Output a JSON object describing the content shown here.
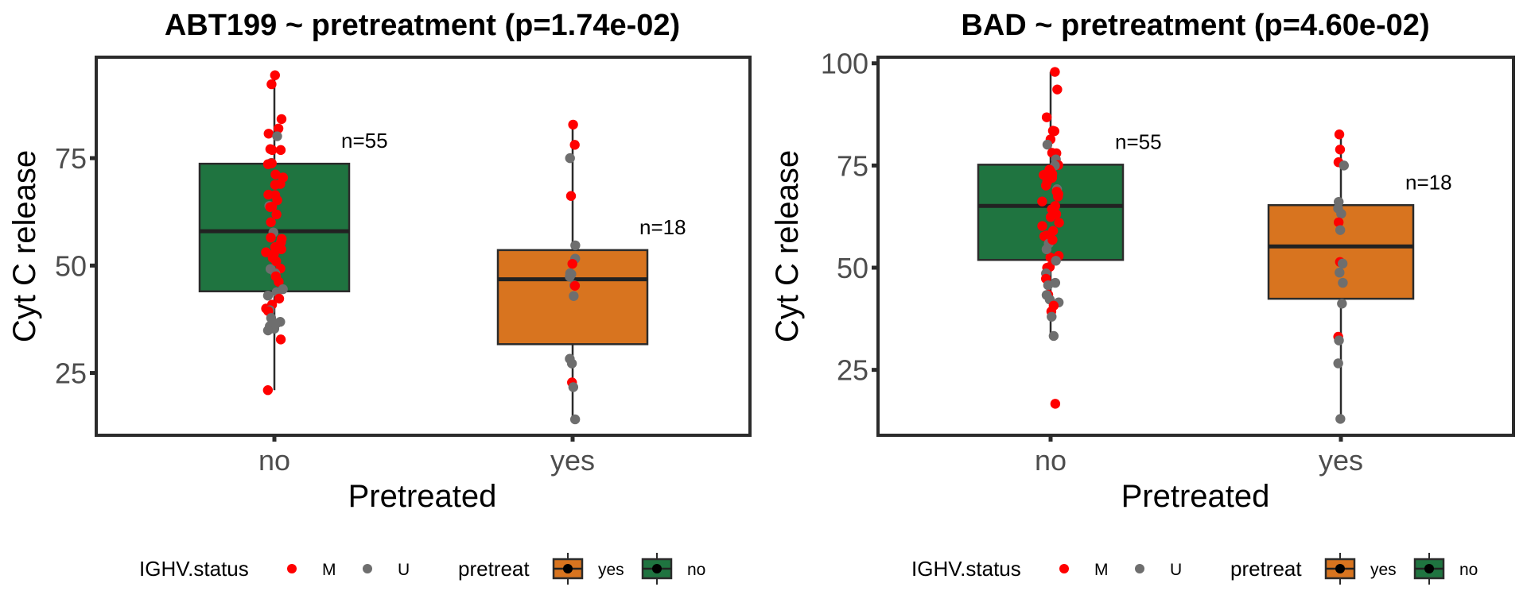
{
  "colors": {
    "no_fill": "#1f7440",
    "yes_fill": "#d8741f",
    "M": "#ff0000",
    "U": "#6e6e6e",
    "frame": "#2b2b2b",
    "median": "#222222"
  },
  "chart_data": [
    {
      "type": "box",
      "title": "ABT199 ~ pretreatment (p=1.74e-02)",
      "xlabel": "Pretreated",
      "ylabel": "Cyt C release",
      "categories": [
        "no",
        "yes"
      ],
      "ylim": [
        10.5,
        98.5
      ],
      "yticks": [
        25,
        50,
        75
      ],
      "grid": false,
      "legend_position": "bottom",
      "boxes": [
        {
          "category": "no",
          "n_label": "n=55",
          "q1": 44.0,
          "median": 58.0,
          "q3": 73.7,
          "whisker_low": 21.0,
          "whisker_high": 94.3
        },
        {
          "category": "yes",
          "n_label": "n=18",
          "q1": 31.7,
          "median": 46.8,
          "q3": 53.6,
          "whisker_low": 14.2,
          "whisker_high": 82.8
        }
      ],
      "points": {
        "no": [
          {
            "v": 94.3,
            "s": "M"
          },
          {
            "v": 92.2,
            "s": "M"
          },
          {
            "v": 84.1,
            "s": "M"
          },
          {
            "v": 81.9,
            "s": "M"
          },
          {
            "v": 80.7,
            "s": "M"
          },
          {
            "v": 80.1,
            "s": "U"
          },
          {
            "v": 77.1,
            "s": "M"
          },
          {
            "v": 76.9,
            "s": "M"
          },
          {
            "v": 76.9,
            "s": "M"
          },
          {
            "v": 73.9,
            "s": "U"
          },
          {
            "v": 73.6,
            "s": "M"
          },
          {
            "v": 73.8,
            "s": "M"
          },
          {
            "v": 69.0,
            "s": "M"
          },
          {
            "v": 68.8,
            "s": "M"
          },
          {
            "v": 66.5,
            "s": "M"
          },
          {
            "v": 66.4,
            "s": "M"
          },
          {
            "v": 63.9,
            "s": "U"
          },
          {
            "v": 63.7,
            "s": "M"
          },
          {
            "v": 63.6,
            "s": "M"
          },
          {
            "v": 61.9,
            "s": "M"
          },
          {
            "v": 57.7,
            "s": "U"
          },
          {
            "v": 56.5,
            "s": "M"
          },
          {
            "v": 56.2,
            "s": "M"
          },
          {
            "v": 55.4,
            "s": "M"
          },
          {
            "v": 54.3,
            "s": "M"
          },
          {
            "v": 53.8,
            "s": "M"
          },
          {
            "v": 52.7,
            "s": "M"
          },
          {
            "v": 51.8,
            "s": "M"
          },
          {
            "v": 49.3,
            "s": "M"
          },
          {
            "v": 49.2,
            "s": "U"
          },
          {
            "v": 48.2,
            "s": "U"
          },
          {
            "v": 46.2,
            "s": "M"
          },
          {
            "v": 44.5,
            "s": "U"
          },
          {
            "v": 43.8,
            "s": "U"
          },
          {
            "v": 43.0,
            "s": "U"
          },
          {
            "v": 42.3,
            "s": "M"
          },
          {
            "v": 40.9,
            "s": "M"
          },
          {
            "v": 40.0,
            "s": "M"
          },
          {
            "v": 39.6,
            "s": "U"
          },
          {
            "v": 39.4,
            "s": "M"
          },
          {
            "v": 36.9,
            "s": "U"
          },
          {
            "v": 36.5,
            "s": "U"
          },
          {
            "v": 35.9,
            "s": "U"
          },
          {
            "v": 35.3,
            "s": "U"
          },
          {
            "v": 34.9,
            "s": "U"
          },
          {
            "v": 32.8,
            "s": "M"
          },
          {
            "v": 21.0,
            "s": "M"
          },
          {
            "v": 60.1,
            "s": "M"
          },
          {
            "v": 65.2,
            "s": "M"
          },
          {
            "v": 70.5,
            "s": "M"
          },
          {
            "v": 71.2,
            "s": "M"
          },
          {
            "v": 53.1,
            "s": "M"
          },
          {
            "v": 51.0,
            "s": "M"
          },
          {
            "v": 47.5,
            "s": "M"
          },
          {
            "v": 37.8,
            "s": "U"
          }
        ],
        "yes": [
          {
            "v": 82.8,
            "s": "M"
          },
          {
            "v": 78.1,
            "s": "M"
          },
          {
            "v": 75.0,
            "s": "U"
          },
          {
            "v": 66.2,
            "s": "M"
          },
          {
            "v": 54.7,
            "s": "U"
          },
          {
            "v": 51.6,
            "s": "U"
          },
          {
            "v": 50.4,
            "s": "M"
          },
          {
            "v": 48.2,
            "s": "U"
          },
          {
            "v": 48.0,
            "s": "U"
          },
          {
            "v": 47.4,
            "s": "U"
          },
          {
            "v": 45.4,
            "s": "U"
          },
          {
            "v": 45.3,
            "s": "M"
          },
          {
            "v": 42.9,
            "s": "U"
          },
          {
            "v": 28.3,
            "s": "U"
          },
          {
            "v": 27.2,
            "s": "U"
          },
          {
            "v": 22.8,
            "s": "M"
          },
          {
            "v": 21.7,
            "s": "U"
          },
          {
            "v": 14.2,
            "s": "U"
          }
        ]
      }
    },
    {
      "type": "box",
      "title": "BAD ~ pretreatment (p=4.60e-02)",
      "xlabel": "Pretreated",
      "ylabel": "Cyt C release",
      "categories": [
        "no",
        "yes"
      ],
      "ylim": [
        9.0,
        101.5
      ],
      "yticks": [
        25,
        50,
        75,
        100
      ],
      "grid": false,
      "legend_position": "bottom",
      "boxes": [
        {
          "category": "no",
          "n_label": "n=55",
          "q1": 51.9,
          "median": 65.1,
          "q3": 75.2,
          "whisker_low": 33.3,
          "whisker_high": 97.9
        },
        {
          "category": "yes",
          "n_label": "n=18",
          "q1": 42.4,
          "median": 55.2,
          "q3": 65.3,
          "whisker_low": 13.0,
          "whisker_high": 82.6
        }
      ],
      "points": {
        "no": [
          {
            "v": 97.9,
            "s": "M"
          },
          {
            "v": 93.6,
            "s": "M"
          },
          {
            "v": 86.8,
            "s": "M"
          },
          {
            "v": 83.5,
            "s": "M"
          },
          {
            "v": 83.4,
            "s": "M"
          },
          {
            "v": 81.4,
            "s": "M"
          },
          {
            "v": 80.1,
            "s": "U"
          },
          {
            "v": 78.1,
            "s": "M"
          },
          {
            "v": 78.0,
            "s": "M"
          },
          {
            "v": 76.5,
            "s": "U"
          },
          {
            "v": 75.1,
            "s": "M"
          },
          {
            "v": 75.0,
            "s": "U"
          },
          {
            "v": 72.8,
            "s": "M"
          },
          {
            "v": 72.7,
            "s": "M"
          },
          {
            "v": 72.9,
            "s": "M"
          },
          {
            "v": 72.0,
            "s": "M"
          },
          {
            "v": 71.0,
            "s": "M"
          },
          {
            "v": 69.2,
            "s": "U"
          },
          {
            "v": 68.6,
            "s": "M"
          },
          {
            "v": 68.0,
            "s": "M"
          },
          {
            "v": 67.4,
            "s": "M"
          },
          {
            "v": 65.1,
            "s": "M"
          },
          {
            "v": 64.3,
            "s": "M"
          },
          {
            "v": 63.1,
            "s": "M"
          },
          {
            "v": 62.4,
            "s": "M"
          },
          {
            "v": 60.2,
            "s": "M"
          },
          {
            "v": 57.9,
            "s": "M"
          },
          {
            "v": 57.7,
            "s": "M"
          },
          {
            "v": 55.9,
            "s": "U"
          },
          {
            "v": 52.9,
            "s": "M"
          },
          {
            "v": 52.5,
            "s": "M"
          },
          {
            "v": 54.5,
            "s": "U"
          },
          {
            "v": 50.2,
            "s": "M"
          },
          {
            "v": 50.0,
            "s": "M"
          },
          {
            "v": 51.7,
            "s": "U"
          },
          {
            "v": 48.6,
            "s": "U"
          },
          {
            "v": 47.3,
            "s": "M"
          },
          {
            "v": 46.3,
            "s": "U"
          },
          {
            "v": 45.7,
            "s": "U"
          },
          {
            "v": 43.4,
            "s": "M"
          },
          {
            "v": 43.3,
            "s": "U"
          },
          {
            "v": 42.2,
            "s": "U"
          },
          {
            "v": 41.5,
            "s": "U"
          },
          {
            "v": 40.7,
            "s": "M"
          },
          {
            "v": 39.3,
            "s": "M"
          },
          {
            "v": 38.0,
            "s": "U"
          },
          {
            "v": 33.3,
            "s": "U"
          },
          {
            "v": 16.7,
            "s": "M"
          },
          {
            "v": 66.2,
            "s": "M"
          },
          {
            "v": 70.1,
            "s": "M"
          },
          {
            "v": 61.0,
            "s": "M"
          },
          {
            "v": 59.0,
            "s": "M"
          },
          {
            "v": 56.8,
            "s": "M"
          },
          {
            "v": 74.0,
            "s": "M"
          },
          {
            "v": 73.5,
            "s": "M"
          }
        ],
        "yes": [
          {
            "v": 82.6,
            "s": "M"
          },
          {
            "v": 78.9,
            "s": "M"
          },
          {
            "v": 75.8,
            "s": "M"
          },
          {
            "v": 75.0,
            "s": "U"
          },
          {
            "v": 66.1,
            "s": "U"
          },
          {
            "v": 64.5,
            "s": "U"
          },
          {
            "v": 63.2,
            "s": "U"
          },
          {
            "v": 61.1,
            "s": "M"
          },
          {
            "v": 59.2,
            "s": "U"
          },
          {
            "v": 51.4,
            "s": "M"
          },
          {
            "v": 51.0,
            "s": "U"
          },
          {
            "v": 48.8,
            "s": "U"
          },
          {
            "v": 46.3,
            "s": "U"
          },
          {
            "v": 41.2,
            "s": "U"
          },
          {
            "v": 33.1,
            "s": "M"
          },
          {
            "v": 32.2,
            "s": "U"
          },
          {
            "v": 26.6,
            "s": "U"
          },
          {
            "v": 13.0,
            "s": "U"
          }
        ]
      }
    }
  ],
  "legend": {
    "ighv_title": "IGHV.status",
    "ighv_items": [
      {
        "key": "M",
        "label": "M"
      },
      {
        "key": "U",
        "label": "U"
      }
    ],
    "pretreat_title": "pretreat",
    "pretreat_items": [
      {
        "key": "yes",
        "label": "yes"
      },
      {
        "key": "no",
        "label": "no"
      }
    ]
  }
}
